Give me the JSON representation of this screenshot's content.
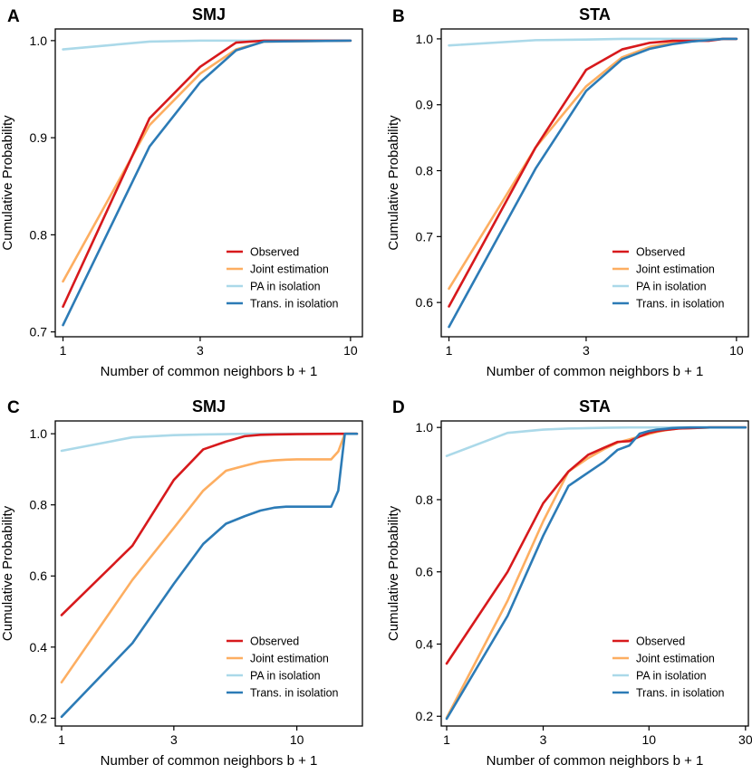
{
  "colors": {
    "Observed": "#d7191c",
    "Joint estimation": "#fdae61",
    "PA in isolation": "#abd9e9",
    "Trans. in isolation": "#2c7bb6"
  },
  "chart_data": [
    {
      "type": "line",
      "panel": "A",
      "title": "SMJ",
      "xlabel": "Number of common neighbors b + 1",
      "ylabel": "Cumulative Probability",
      "xscale": "log",
      "xlim": [
        0.94,
        11
      ],
      "ylim": [
        0.695,
        1.012
      ],
      "xticks": [
        1,
        3,
        10
      ],
      "yticks": [
        0.7,
        0.8,
        0.9,
        1.0
      ],
      "ytick_labels": [
        "0.7",
        "0.8",
        "0.9",
        "1.0"
      ],
      "legend_position": "bottom-right",
      "series": [
        {
          "name": "Observed",
          "x": [
            1,
            2,
            3,
            4,
            5,
            10
          ],
          "y": [
            0.726,
            0.92,
            0.973,
            0.998,
            1.0,
            1.0
          ]
        },
        {
          "name": "Joint estimation",
          "x": [
            1,
            2,
            3,
            4,
            5,
            10
          ],
          "y": [
            0.752,
            0.913,
            0.966,
            0.991,
            0.999,
            1.0
          ]
        },
        {
          "name": "PA in isolation",
          "x": [
            1,
            2,
            3,
            4,
            5,
            10
          ],
          "y": [
            0.991,
            0.999,
            1.0,
            1.0,
            1.0,
            1.0
          ]
        },
        {
          "name": "Trans. in isolation",
          "x": [
            1,
            2,
            3,
            4,
            5,
            10
          ],
          "y": [
            0.707,
            0.891,
            0.957,
            0.99,
            0.999,
            1.0
          ]
        }
      ]
    },
    {
      "type": "line",
      "panel": "B",
      "title": "STA",
      "xlabel": "Number of common neighbors b + 1",
      "ylabel": "Cumulative Probability",
      "xscale": "log",
      "xlim": [
        0.94,
        11
      ],
      "ylim": [
        0.548,
        1.015
      ],
      "xticks": [
        1,
        3,
        10
      ],
      "yticks": [
        0.6,
        0.7,
        0.8,
        0.9,
        1.0
      ],
      "ytick_labels": [
        "0.6",
        "0.7",
        "0.8",
        "0.9",
        "1.0"
      ],
      "legend_position": "bottom-right",
      "series": [
        {
          "name": "Observed",
          "x": [
            1,
            2,
            3,
            4,
            5,
            6,
            7,
            8,
            9,
            10
          ],
          "y": [
            0.594,
            0.835,
            0.953,
            0.984,
            0.994,
            0.997,
            0.997,
            0.997,
            1.0,
            1.0
          ]
        },
        {
          "name": "Joint estimation",
          "x": [
            1,
            2,
            3,
            4,
            5,
            6,
            7,
            8,
            9,
            10
          ],
          "y": [
            0.621,
            0.835,
            0.928,
            0.972,
            0.988,
            0.994,
            0.997,
            0.998,
            1.0,
            1.0
          ]
        },
        {
          "name": "PA in isolation",
          "x": [
            1,
            2,
            3,
            4,
            5,
            10
          ],
          "y": [
            0.99,
            0.998,
            0.999,
            1.0,
            1.0,
            1.0
          ]
        },
        {
          "name": "Trans. in isolation",
          "x": [
            1,
            2,
            3,
            4,
            5,
            6,
            7,
            8,
            9,
            10
          ],
          "y": [
            0.563,
            0.803,
            0.921,
            0.969,
            0.985,
            0.992,
            0.996,
            0.998,
            1.0,
            1.0
          ]
        }
      ]
    },
    {
      "type": "line",
      "panel": "C",
      "title": "SMJ",
      "xlabel": "Number of common neighbors b + 1",
      "ylabel": "Cumulative Probability",
      "xscale": "log",
      "xlim": [
        0.94,
        19
      ],
      "ylim": [
        0.178,
        1.036
      ],
      "xticks": [
        1,
        3,
        10
      ],
      "yticks": [
        0.2,
        0.4,
        0.6,
        0.8,
        1.0
      ],
      "ytick_labels": [
        "0.2",
        "0.4",
        "0.6",
        "0.8",
        "1.0"
      ],
      "legend_position": "bottom-right",
      "series": [
        {
          "name": "Observed",
          "x": [
            1,
            2,
            3,
            4,
            5,
            6,
            7,
            8,
            10,
            15,
            16,
            18
          ],
          "y": [
            0.49,
            0.685,
            0.87,
            0.956,
            0.978,
            0.993,
            0.997,
            0.998,
            0.999,
            1.0,
            1.0,
            1.0
          ]
        },
        {
          "name": "Joint estimation",
          "x": [
            1,
            2,
            3,
            4,
            5,
            6,
            7,
            8,
            9,
            10,
            11,
            12,
            13,
            14,
            15,
            16,
            18
          ],
          "y": [
            0.301,
            0.589,
            0.735,
            0.84,
            0.896,
            0.91,
            0.921,
            0.925,
            0.927,
            0.928,
            0.928,
            0.928,
            0.928,
            0.928,
            0.95,
            1.0,
            1.0
          ]
        },
        {
          "name": "PA in isolation",
          "x": [
            1,
            2,
            3,
            4,
            5,
            6,
            8,
            10,
            18
          ],
          "y": [
            0.952,
            0.99,
            0.996,
            0.998,
            0.999,
            1.0,
            1.0,
            1.0,
            1.0
          ]
        },
        {
          "name": "Trans. in isolation",
          "x": [
            1,
            2,
            3,
            4,
            5,
            6,
            7,
            8,
            9,
            10,
            11,
            12,
            13,
            14,
            15,
            16,
            18
          ],
          "y": [
            0.204,
            0.411,
            0.578,
            0.69,
            0.747,
            0.768,
            0.784,
            0.792,
            0.795,
            0.795,
            0.795,
            0.795,
            0.795,
            0.795,
            0.84,
            1.0,
            1.0
          ]
        }
      ]
    },
    {
      "type": "line",
      "panel": "D",
      "title": "STA",
      "xlabel": "Number of common neighbors b + 1",
      "ylabel": "Cumulative Probability",
      "xscale": "log",
      "xlim": [
        0.94,
        31
      ],
      "ylim": [
        0.173,
        1.018
      ],
      "xticks": [
        1,
        3,
        10,
        30
      ],
      "yticks": [
        0.2,
        0.4,
        0.6,
        0.8,
        1.0
      ],
      "ytick_labels": [
        "0.2",
        "0.4",
        "0.6",
        "0.8",
        "1.0"
      ],
      "legend_position": "bottom-right",
      "series": [
        {
          "name": "Observed",
          "x": [
            1,
            2,
            3,
            4,
            5,
            6,
            7,
            8,
            9,
            10,
            11,
            12,
            13,
            14,
            16,
            18,
            20,
            30
          ],
          "y": [
            0.346,
            0.6,
            0.79,
            0.878,
            0.924,
            0.944,
            0.96,
            0.962,
            0.975,
            0.985,
            0.99,
            0.993,
            0.995,
            0.997,
            0.998,
            0.999,
            1.0,
            1.0
          ]
        },
        {
          "name": "Joint estimation",
          "x": [
            1,
            2,
            3,
            4,
            5,
            6,
            7,
            8,
            9,
            10,
            11,
            12,
            13,
            14,
            16,
            18,
            20,
            30
          ],
          "y": [
            0.196,
            0.52,
            0.74,
            0.878,
            0.915,
            0.94,
            0.958,
            0.967,
            0.975,
            0.982,
            0.988,
            0.992,
            0.995,
            0.997,
            0.998,
            0.999,
            1.0,
            1.0
          ]
        },
        {
          "name": "PA in isolation",
          "x": [
            1,
            2,
            3,
            4,
            5,
            6,
            8,
            10,
            15,
            30
          ],
          "y": [
            0.921,
            0.985,
            0.994,
            0.997,
            0.998,
            0.999,
            1.0,
            1.0,
            1.0,
            1.0
          ]
        },
        {
          "name": "Trans. in isolation",
          "x": [
            1,
            2,
            3,
            4,
            5,
            6,
            7,
            8,
            9,
            10,
            11,
            12,
            13,
            14,
            16,
            18,
            20,
            30
          ],
          "y": [
            0.193,
            0.478,
            0.7,
            0.838,
            0.875,
            0.905,
            0.938,
            0.95,
            0.983,
            0.99,
            0.994,
            0.996,
            0.998,
            0.999,
            1.0,
            1.0,
            1.0,
            1.0
          ]
        }
      ]
    }
  ]
}
